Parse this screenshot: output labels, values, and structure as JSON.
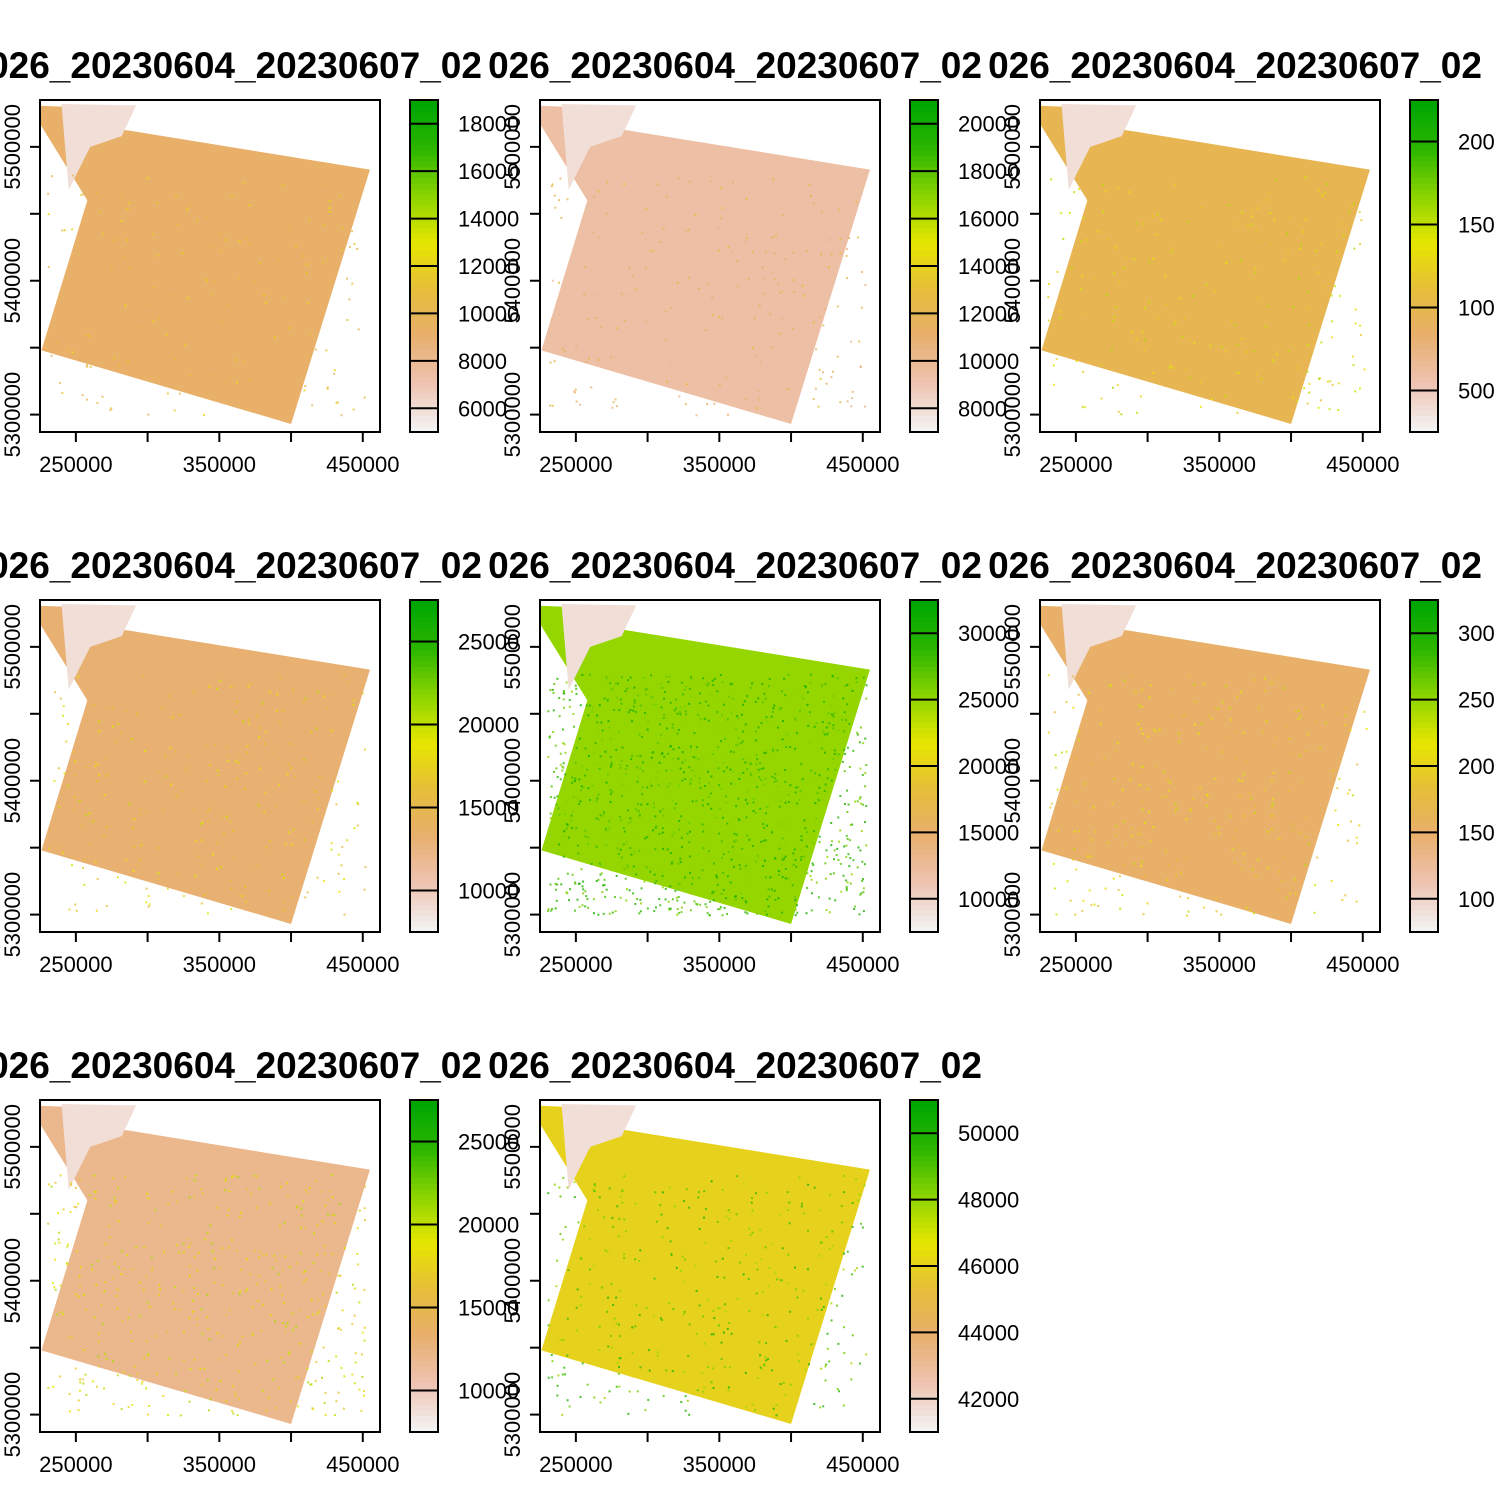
{
  "colors": {
    "ramp": [
      "#f2f2f2",
      "#eec3b1",
      "#e8af6e",
      "#e6bd3a",
      "#e6e600",
      "#8cd400",
      "#2db600",
      "#00a600"
    ],
    "frame": "#000000",
    "background": "#ffffff"
  },
  "layout": {
    "rows": 3,
    "cols": 3
  },
  "charts": [
    {
      "type": "raster-map",
      "title": "026_20230604_20230607_02",
      "x_ticks": [
        "250000",
        "350000",
        "450000"
      ],
      "y_ticks": [
        "5300000",
        "5400000",
        "5500000"
      ],
      "legend_ticks": [
        "6000",
        "8000",
        "10000",
        "12000",
        "14000",
        "16000",
        "18000"
      ],
      "legend_range": [
        5000,
        18200
      ],
      "fill_level": 0.3,
      "speckle_level": 0.42,
      "speckle_density": 0.05
    },
    {
      "type": "raster-map",
      "title": "026_20230604_20230607_02",
      "x_ticks": [
        "250000",
        "350000",
        "450000"
      ],
      "y_ticks": [
        "5300000",
        "5400000",
        "5500000"
      ],
      "legend_ticks": [
        "8000",
        "10000",
        "12000",
        "14000",
        "16000",
        "18000",
        "20000"
      ],
      "legend_range": [
        6500,
        20100
      ],
      "fill_level": 0.17,
      "speckle_level": 0.32,
      "speckle_density": 0.06
    },
    {
      "type": "raster-map",
      "title": "026_20230604_20230607_02",
      "x_ticks": [
        "250000",
        "350000",
        "450000"
      ],
      "y_ticks": [
        "5300000",
        "5400000",
        "5500000"
      ],
      "legend_ticks": [
        "500",
        "100",
        "150",
        "200"
      ],
      "legend_range": [
        0,
        1
      ],
      "fill_level": 0.36,
      "speckle_level": 0.55,
      "speckle_density": 0.06
    },
    {
      "type": "raster-map",
      "title": "026_20230604_20230607_02",
      "x_ticks": [
        "250000",
        "350000",
        "450000"
      ],
      "y_ticks": [
        "5300000",
        "5400000",
        "5500000"
      ],
      "legend_ticks": [
        "10000",
        "15000",
        "20000",
        "25000"
      ],
      "legend_range": [
        5000,
        25500
      ],
      "fill_level": 0.28,
      "speckle_level": 0.5,
      "speckle_density": 0.07
    },
    {
      "type": "raster-map",
      "title": "026_20230604_20230607_02",
      "x_ticks": [
        "250000",
        "350000",
        "450000"
      ],
      "y_ticks": [
        "5300000",
        "5400000",
        "5500000"
      ],
      "legend_ticks": [
        "10000",
        "15000",
        "20000",
        "25000",
        "30000"
      ],
      "legend_range": [
        6000,
        33000
      ],
      "fill_level": 0.7,
      "speckle_level": 0.82,
      "speckle_density": 0.3
    },
    {
      "type": "raster-map",
      "title": "026_20230604_20230607_02",
      "x_ticks": [
        "250000",
        "350000",
        "450000"
      ],
      "y_ticks": [
        "5300000",
        "5400000",
        "5500000"
      ],
      "legend_ticks": [
        "100",
        "150",
        "200",
        "250",
        "300"
      ],
      "legend_range": [
        0,
        1
      ],
      "fill_level": 0.3,
      "speckle_level": 0.52,
      "speckle_density": 0.08
    },
    {
      "type": "raster-map",
      "title": "026_20230604_20230607_02",
      "x_ticks": [
        "250000",
        "350000",
        "450000"
      ],
      "y_ticks": [
        "5300000",
        "5400000",
        "5500000"
      ],
      "legend_ticks": [
        "10000",
        "15000",
        "20000",
        "25000"
      ],
      "legend_range": [
        6000,
        29500
      ],
      "fill_level": 0.22,
      "speckle_level": 0.55,
      "speckle_density": 0.12
    },
    {
      "type": "raster-map",
      "title": "026_20230604_20230607_02",
      "x_ticks": [
        "250000",
        "350000",
        "450000"
      ],
      "y_ticks": [
        "5300000",
        "5400000",
        "5500000"
      ],
      "legend_ticks": [
        "42000",
        "44000",
        "46000",
        "48000",
        "50000"
      ],
      "legend_range": [
        40000,
        50800
      ],
      "fill_level": 0.5,
      "speckle_level": 0.78,
      "speckle_density": 0.1
    }
  ]
}
